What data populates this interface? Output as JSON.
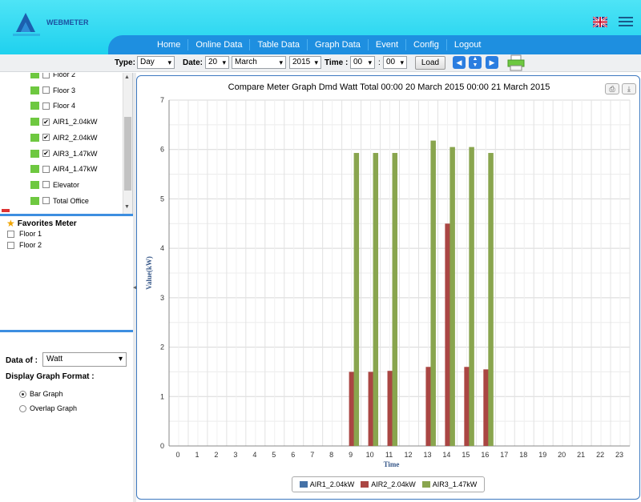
{
  "app": {
    "brand": "WEBMETER"
  },
  "nav": {
    "items": [
      "Home",
      "Online Data",
      "Table Data",
      "Graph Data",
      "Event",
      "Config",
      "Logout"
    ]
  },
  "toolbar": {
    "type_label": "Type:",
    "type_value": "Day",
    "date_label": "Date:",
    "day_value": "20",
    "month_value": "March",
    "year_value": "2015",
    "time_label": "Time :",
    "hour_value": "00",
    "minute_value": "00",
    "load_label": "Load"
  },
  "tree": {
    "items": [
      {
        "label": "Floor 2",
        "checked": false
      },
      {
        "label": "Floor 3",
        "checked": false
      },
      {
        "label": "Floor 4",
        "checked": false
      },
      {
        "label": "AIR1_2.04kW",
        "checked": true
      },
      {
        "label": "AIR2_2.04kW",
        "checked": true
      },
      {
        "label": "AIR3_1.47kW",
        "checked": true
      },
      {
        "label": "AIR4_1.47kW",
        "checked": false
      },
      {
        "label": "Elevator",
        "checked": false
      },
      {
        "label": "Total Office",
        "checked": false
      }
    ]
  },
  "favorites": {
    "title": "Favorites Meter",
    "items": [
      "Floor 1",
      "Floor 2"
    ]
  },
  "options": {
    "data_of_label": "Data of :",
    "data_of_value": "Watt",
    "display_format_label": "Display Graph Format :",
    "formats": [
      {
        "label": "Bar Graph",
        "selected": true
      },
      {
        "label": "Overlap Graph",
        "selected": false
      }
    ]
  },
  "colors": {
    "header": "#1fd1ee",
    "nav": "#1e8fe0",
    "panel_border": "#3d79c0",
    "series1": "#4572a7",
    "series2": "#aa4643",
    "series3": "#89a54e"
  },
  "chart_data": {
    "type": "bar",
    "title": "Compare Meter Graph Dmd Watt Total 00:00 20 March 2015 00:00 21 March 2015",
    "xlabel": "Time",
    "ylabel": "Value(kW)",
    "ylim": [
      0,
      7
    ],
    "categories": [
      "0",
      "1",
      "2",
      "3",
      "4",
      "5",
      "6",
      "7",
      "8",
      "9",
      "10",
      "11",
      "12",
      "13",
      "14",
      "15",
      "16",
      "17",
      "18",
      "19",
      "20",
      "21",
      "22",
      "23"
    ],
    "series": [
      {
        "name": "AIR1_2.04kW",
        "values": [
          0,
          0,
          0,
          0,
          0,
          0,
          0,
          0,
          0,
          0,
          0,
          0,
          0,
          0,
          0,
          0,
          0,
          0,
          0,
          0,
          0,
          0,
          0,
          0
        ]
      },
      {
        "name": "AIR2_2.04kW",
        "values": [
          0,
          0,
          0,
          0,
          0,
          0,
          0,
          0,
          0,
          1.5,
          1.5,
          1.52,
          0,
          1.6,
          4.5,
          1.6,
          1.55,
          0,
          0,
          0,
          0,
          0,
          0,
          0
        ]
      },
      {
        "name": "AIR3_1.47kW",
        "values": [
          0,
          0,
          0,
          0,
          0,
          0,
          0,
          0,
          0,
          5.93,
          5.93,
          5.93,
          0,
          6.18,
          6.05,
          6.05,
          5.93,
          0,
          0,
          0,
          0,
          0,
          0,
          0
        ]
      }
    ],
    "grid": true,
    "legend": "bottom"
  }
}
